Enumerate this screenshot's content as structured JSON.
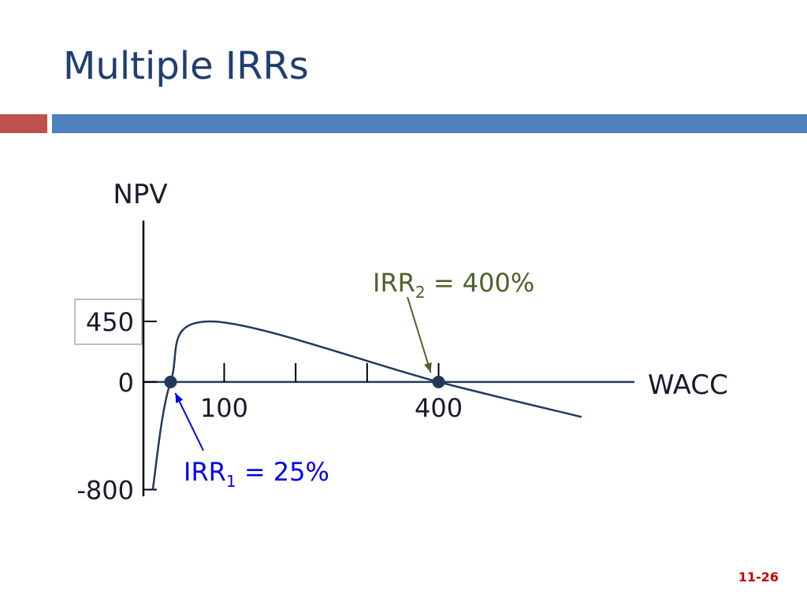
{
  "slide": {
    "title": "Multiple IRRs",
    "page_number": "11-26"
  },
  "chart_data": {
    "type": "line",
    "y_label": "NPV",
    "x_label": "WACC",
    "x": [
      0,
      25,
      80,
      400,
      600
    ],
    "values": [
      -800,
      0,
      450,
      0,
      -260
    ],
    "color": "#22395c",
    "xlim": [
      -13,
      674
    ],
    "ylim": [
      -850,
      1200
    ],
    "xticks": [
      100,
      400
    ],
    "minor_xticks": [
      200,
      300
    ],
    "yticks": [
      -800,
      0,
      450
    ],
    "annotations": [
      {
        "text": "IRR",
        "sub": "1",
        "rest": " = 25%",
        "x": 25,
        "y": 0,
        "color": "#0000ee"
      },
      {
        "text": "IRR",
        "sub": "2",
        "rest": " = 400%",
        "x": 400,
        "y": 0,
        "color": "#4f6228"
      }
    ]
  }
}
